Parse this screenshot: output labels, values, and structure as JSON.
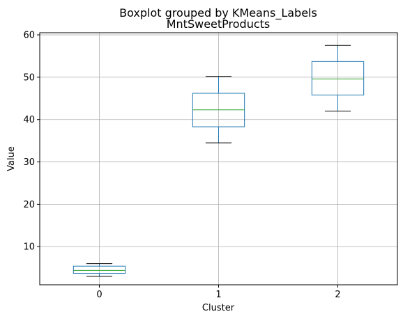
{
  "chart_data": {
    "type": "box",
    "suptitle": "Boxplot grouped by KMeans_Labels",
    "title": "MntSweetProducts",
    "xlabel": "Cluster",
    "ylabel": "Value",
    "categories": [
      "0",
      "1",
      "2"
    ],
    "ylim": [
      1,
      60.5
    ],
    "yticks": [
      10,
      20,
      30,
      40,
      50,
      60
    ],
    "grid": true,
    "boxes": [
      {
        "category": "0",
        "whisker_low": 3.0,
        "q1": 3.7,
        "median": 4.4,
        "q3": 5.4,
        "whisker_high": 6.0
      },
      {
        "category": "1",
        "whisker_low": 34.5,
        "q1": 38.3,
        "median": 42.3,
        "q3": 46.2,
        "whisker_high": 50.2
      },
      {
        "category": "2",
        "whisker_low": 42.0,
        "q1": 45.8,
        "median": 49.6,
        "q3": 53.7,
        "whisker_high": 57.5
      }
    ],
    "colors": {
      "box": "#1f77b4",
      "median": "#2ca02c",
      "whisker": "#1f77b4",
      "cap": "#000000",
      "grid": "#b0b0b0"
    }
  }
}
